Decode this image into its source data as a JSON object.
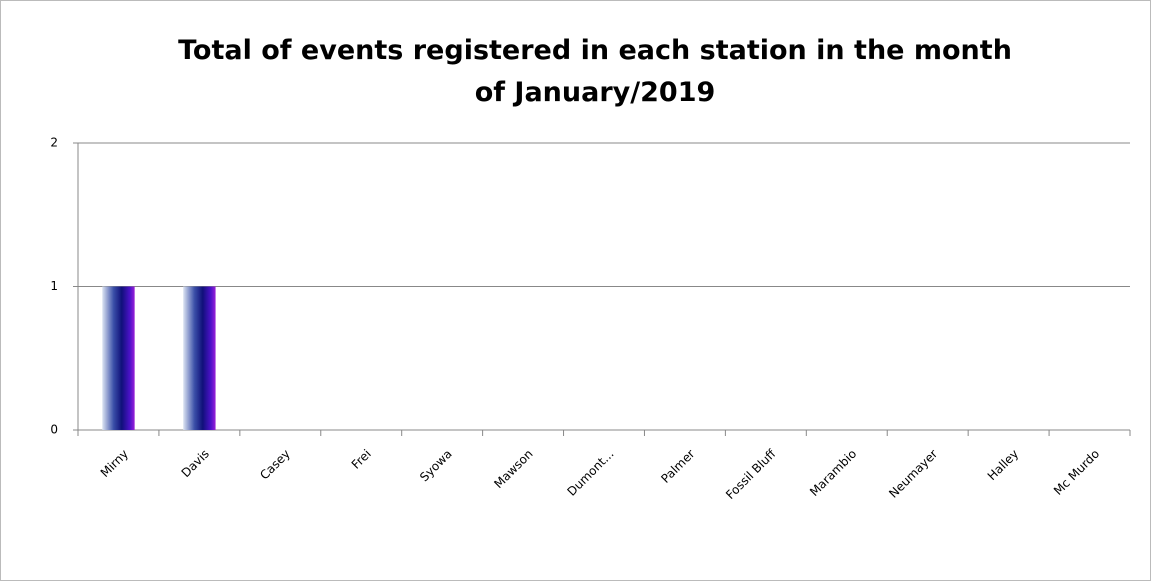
{
  "chart_data": {
    "type": "bar",
    "title": "Total of events registered in each station in the month of January/2019",
    "categories": [
      "Mirny",
      "Davis",
      "Casey",
      "Frei",
      "Syowa",
      "Mawson",
      "Dumont...",
      "Palmer",
      "Fossil Bluff",
      "Marambio",
      "Neumayer",
      "Halley",
      "Mc Murdo"
    ],
    "values": [
      1,
      1,
      0,
      0,
      0,
      0,
      0,
      0,
      0,
      0,
      0,
      0,
      0
    ],
    "color": "#1a1a9e",
    "ylim": [
      0,
      2
    ],
    "yticks": [
      0,
      1,
      2
    ],
    "grid": true
  }
}
